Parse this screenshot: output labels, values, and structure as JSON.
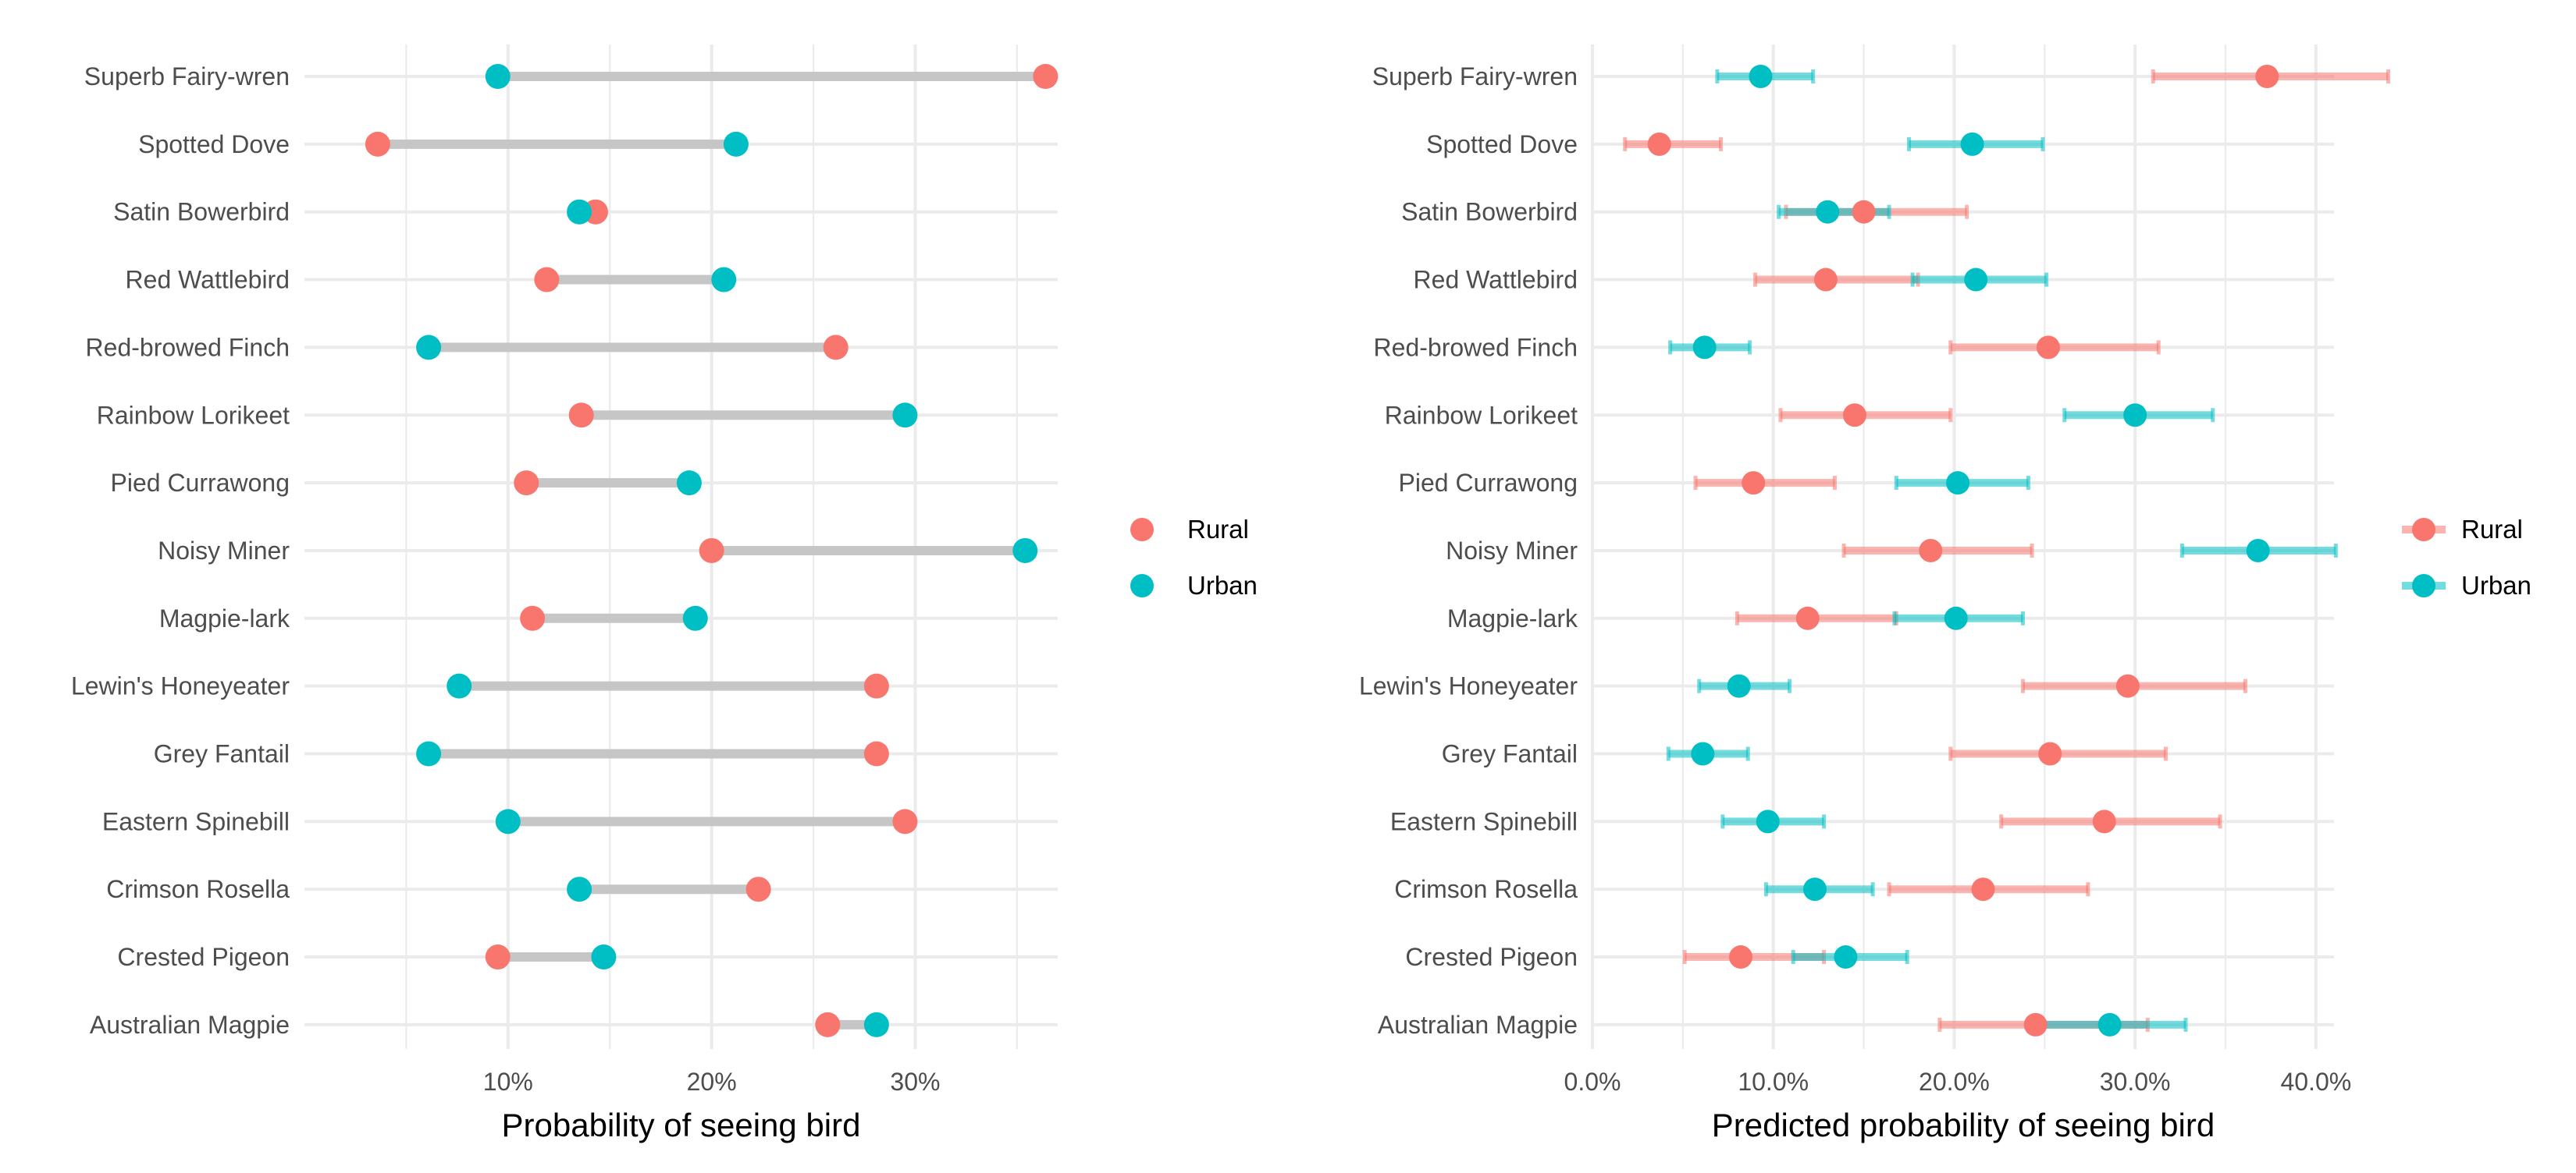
{
  "colors": {
    "rural": "#F8766D",
    "urban": "#00BFC4",
    "segment": "#c6c6c6",
    "grid": "#ebebeb",
    "tick_text": "#4d4d4d"
  },
  "chart_data": [
    {
      "type": "dumbbell",
      "xlabel": "Probability of seeing bird",
      "ylabel": "",
      "xlim": [
        0.0,
        0.37
      ],
      "x_ticks": [
        0.1,
        0.2,
        0.3
      ],
      "x_tick_labels": [
        "10%",
        "20%",
        "30%"
      ],
      "grid": true,
      "legend": {
        "position": "right",
        "entries": [
          "Rural",
          "Urban"
        ]
      },
      "categories": [
        "Superb Fairy-wren",
        "Spotted Dove",
        "Satin Bowerbird",
        "Red Wattlebird",
        "Red-browed Finch",
        "Rainbow Lorikeet",
        "Pied Currawong",
        "Noisy Miner",
        "Magpie-lark",
        "Lewin's Honeyeater",
        "Grey Fantail",
        "Eastern Spinebill",
        "Crimson Rosella",
        "Crested Pigeon",
        "Australian Magpie"
      ],
      "series": [
        {
          "name": "Rural",
          "color": "#F8766D",
          "values": [
            0.364,
            0.036,
            0.143,
            0.119,
            0.261,
            0.136,
            0.109,
            0.2,
            0.112,
            0.281,
            0.281,
            0.295,
            0.223,
            0.095,
            0.257
          ]
        },
        {
          "name": "Urban",
          "color": "#00BFC4",
          "values": [
            0.095,
            0.212,
            0.135,
            0.206,
            0.061,
            0.295,
            0.189,
            0.354,
            0.192,
            0.076,
            0.061,
            0.1,
            0.135,
            0.147,
            0.281
          ]
        }
      ]
    },
    {
      "type": "point-errorbar",
      "xlabel": "Predicted probability of seeing bird",
      "ylabel": "",
      "xlim": [
        0.0,
        0.41
      ],
      "x_ticks": [
        0.0,
        0.1,
        0.2,
        0.3,
        0.4
      ],
      "x_tick_labels": [
        "0.0%",
        "10.0%",
        "20.0%",
        "30.0%",
        "40.0%"
      ],
      "grid": true,
      "legend": {
        "position": "right",
        "entries": [
          "Rural",
          "Urban"
        ]
      },
      "categories": [
        "Superb Fairy-wren",
        "Spotted Dove",
        "Satin Bowerbird",
        "Red Wattlebird",
        "Red-browed Finch",
        "Rainbow Lorikeet",
        "Pied Currawong",
        "Noisy Miner",
        "Magpie-lark",
        "Lewin's Honeyeater",
        "Grey Fantail",
        "Eastern Spinebill",
        "Crimson Rosella",
        "Crested Pigeon",
        "Australian Magpie"
      ],
      "series": [
        {
          "name": "Rural",
          "color": "#F8766D",
          "values": [
            0.373,
            0.037,
            0.15,
            0.129,
            0.252,
            0.145,
            0.089,
            0.187,
            0.119,
            0.296,
            0.253,
            0.283,
            0.216,
            0.082,
            0.245
          ],
          "lower": [
            0.31,
            0.018,
            0.107,
            0.09,
            0.198,
            0.104,
            0.057,
            0.139,
            0.08,
            0.238,
            0.198,
            0.226,
            0.164,
            0.051,
            0.192
          ],
          "upper": [
            0.44,
            0.071,
            0.207,
            0.18,
            0.313,
            0.198,
            0.134,
            0.243,
            0.168,
            0.361,
            0.317,
            0.347,
            0.274,
            0.128,
            0.307
          ]
        },
        {
          "name": "Urban",
          "color": "#00BFC4",
          "values": [
            0.093,
            0.21,
            0.13,
            0.212,
            0.062,
            0.3,
            0.202,
            0.368,
            0.201,
            0.081,
            0.061,
            0.097,
            0.123,
            0.14,
            0.286
          ],
          "lower": [
            0.069,
            0.175,
            0.103,
            0.177,
            0.043,
            0.261,
            0.168,
            0.326,
            0.167,
            0.059,
            0.042,
            0.072,
            0.096,
            0.111,
            0.249
          ],
          "upper": [
            0.122,
            0.249,
            0.164,
            0.251,
            0.087,
            0.343,
            0.241,
            0.411,
            0.238,
            0.109,
            0.086,
            0.128,
            0.155,
            0.174,
            0.328
          ]
        }
      ]
    }
  ]
}
